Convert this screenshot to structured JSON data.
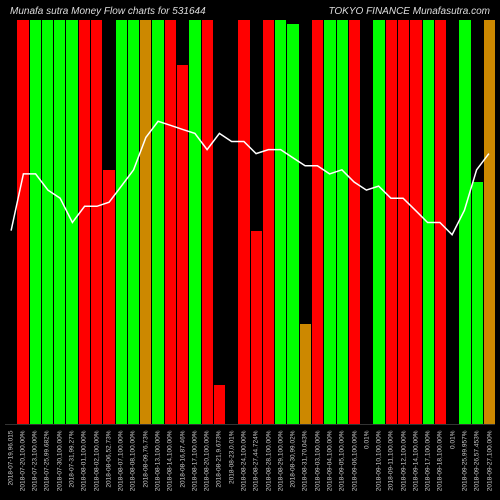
{
  "title_left": "Munafa sutra Money Flow charts for 531644",
  "title_right": "TOKYO FINANCE Munafasutra.com",
  "chart": {
    "type": "bar-with-line-overlay",
    "background_color": "#000000",
    "line_color": "#ffffff",
    "line_width": 1.5,
    "colors": {
      "up": "#00ff00",
      "down": "#ff0000",
      "neutral": "#cc8800"
    },
    "bar_width": 1,
    "label_fontsize": 6.5,
    "label_color": "#cccccc",
    "title_fontsize": 10,
    "title_color": "#dddddd",
    "ylim_bar": [
      0,
      100
    ],
    "ylim_line": [
      0,
      100
    ],
    "categories": [
      "2018-07-19,96.015",
      "2018-07-20,100.00%",
      "2018-07-23,100.00%",
      "2018-07-25,99.682%",
      "2018-07-30,100.00%",
      "2018-07-31,99.27%",
      "2018-08-01,100.00%",
      "2018-08-02,100.00%",
      "2018-08-06,52.73%",
      "2018-08-07,100.00%",
      "2018-08-08,100.00%",
      "2018-08-09,76.73%",
      "2018-08-13,100.00%",
      "2018-08-14,100.00%",
      "2018-08-16,87.46%",
      "2018-08-17,100.00%",
      "2018-08-20,100.00%",
      "2018-08-21,9.673%",
      "2018-08-23,0.01%",
      "2018-08-24,100.00%",
      "2018-08-27,44.724%",
      "2018-08-28,100.00%",
      "2018-08-29,100.00%",
      "2018-08-30,99.02%",
      "2018-08-31,70.043%",
      "2018-09-03,100.00%",
      "2018-09-04,100.00%",
      "2018-09-05,100.00%",
      "2018-09-06,100.00%",
      "0.01%",
      "2018-09-10,100.00%",
      "2018-09-11,100.00%",
      "2018-09-12,100.00%",
      "2018-09-14,100.00%",
      "2018-09-17,100.00%",
      "2018-09-18,100.00%",
      "0.01%",
      "2018-09-25,99.957%",
      "2018-09-26,57.453%",
      "2018-09-27,100.00%"
    ],
    "bar_values": [
      0,
      100,
      100,
      100,
      100,
      100,
      100,
      100,
      63,
      100,
      100,
      100,
      100,
      100,
      89,
      100,
      100,
      10,
      0,
      100,
      48,
      100,
      100,
      99,
      25,
      100,
      100,
      100,
      100,
      0,
      100,
      100,
      100,
      100,
      100,
      100,
      0,
      100,
      60,
      100
    ],
    "bar_colors_idx": [
      "neutral",
      "down",
      "up",
      "up",
      "up",
      "up",
      "down",
      "down",
      "down",
      "up",
      "up",
      "neutral",
      "up",
      "down",
      "down",
      "up",
      "down",
      "down",
      "neutral",
      "down",
      "down",
      "down",
      "up",
      "up",
      "neutral",
      "down",
      "up",
      "up",
      "down",
      "neutral",
      "up",
      "down",
      "down",
      "down",
      "up",
      "down",
      "neutral",
      "up",
      "up",
      "neutral"
    ],
    "line_values": [
      48,
      62,
      62,
      58,
      56,
      50,
      54,
      54,
      55,
      59,
      63,
      71,
      75,
      74,
      73,
      72,
      68,
      72,
      70,
      70,
      67,
      68,
      68,
      66,
      64,
      64,
      62,
      63,
      60,
      58,
      59,
      56,
      56,
      53,
      50,
      50,
      47,
      53,
      63,
      67
    ]
  }
}
